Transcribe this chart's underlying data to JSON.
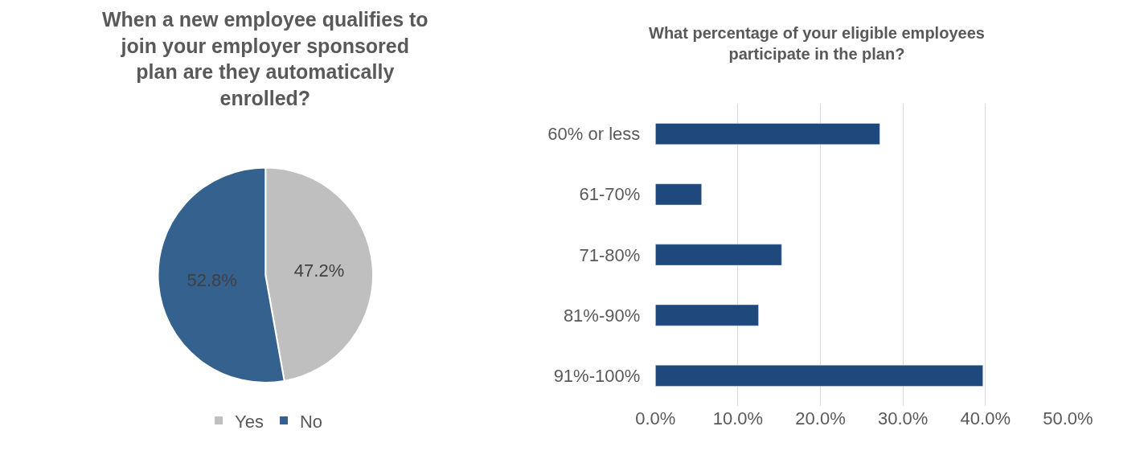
{
  "chart_data": [
    {
      "type": "pie",
      "title": "When a new employee qualifies to join your employer sponsored plan are they automatically enrolled?",
      "categories": [
        "Yes",
        "No"
      ],
      "values": [
        47.2,
        52.8
      ],
      "colors": [
        "#bfbfbf",
        "#35618f"
      ],
      "value_labels": [
        "47.2%",
        "52.8%"
      ],
      "legend": "bottom"
    },
    {
      "type": "bar",
      "orientation": "horizontal",
      "title": "What percentage of your eligible employees participate in the plan?",
      "categories": [
        "60% or less",
        "61-70%",
        "71-80%",
        "81%-90%",
        "91%-100%"
      ],
      "values": [
        27.2,
        5.6,
        15.3,
        12.5,
        39.7
      ],
      "color": "#1f497d",
      "xlim": [
        0,
        50
      ],
      "xticks": [
        {
          "value": 0,
          "label": "0.0%"
        },
        {
          "value": 10,
          "label": "10.0%"
        },
        {
          "value": 20,
          "label": "20.0%"
        },
        {
          "value": 30,
          "label": "30.0%"
        },
        {
          "value": 40,
          "label": "40.0%"
        },
        {
          "value": 50,
          "label": "50.0%"
        }
      ],
      "grid": "x"
    }
  ]
}
